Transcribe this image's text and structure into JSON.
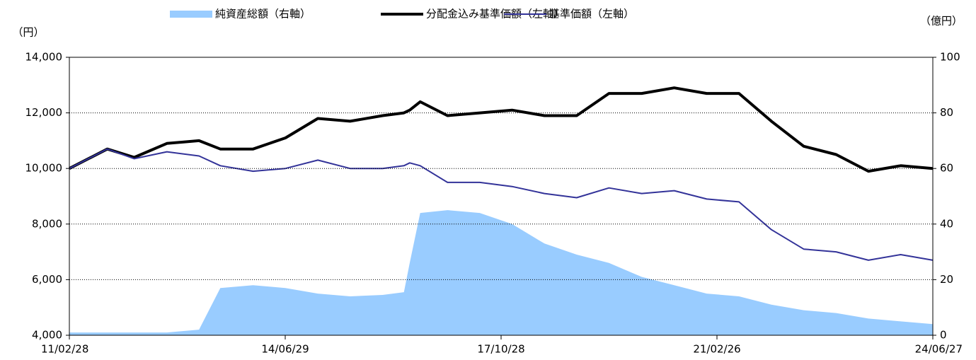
{
  "chart_data": {
    "type": "line",
    "y_label": "（円）",
    "y2_label": "（億円）",
    "x": [
      "11/02/28",
      "11/09/30",
      "12/02/29",
      "12/08/31",
      "13/02/28",
      "13/06/28",
      "13/12/30",
      "14/06/30",
      "14/12/30",
      "15/06/30",
      "15/12/30",
      "16/04/28",
      "16/05/31",
      "16/07/29",
      "16/12/30",
      "17/06/30",
      "17/12/29",
      "18/06/29",
      "18/12/28",
      "19/06/28",
      "19/12/30",
      "20/06/30",
      "20/12/30",
      "21/06/30",
      "21/12/30",
      "22/06/30",
      "22/12/30",
      "23/06/30",
      "23/12/29",
      "24/06/27"
    ],
    "series": [
      {
        "name": "純資産総額（右軸）",
        "color": "#99ccff",
        "axis": "y2",
        "kind": "area",
        "values": [
          1,
          1,
          1,
          1,
          2,
          17,
          18,
          17,
          15,
          14,
          14.5,
          15.5,
          26,
          44,
          45,
          44,
          40,
          33,
          29,
          26,
          21,
          18,
          15,
          14,
          11,
          9,
          8,
          6,
          5,
          4
        ]
      },
      {
        "name": "分配金込み基準価額（左軸）",
        "color": "#000000",
        "kind": "line",
        "width": 4,
        "values": [
          10000,
          10700,
          10400,
          10900,
          11000,
          10700,
          10700,
          11100,
          11800,
          11700,
          11900,
          12000,
          12100,
          12400,
          11900,
          12000,
          12100,
          11900,
          11900,
          12700,
          12700,
          12900,
          12700,
          12700,
          11700,
          10800,
          10500,
          9900,
          10100,
          10000
        ]
      },
      {
        "name": "基準価額（左軸）",
        "color": "#333399",
        "kind": "line",
        "width": 2,
        "values": [
          10000,
          10700,
          10350,
          10600,
          10450,
          10100,
          9900,
          10000,
          10300,
          10000,
          10000,
          10100,
          10200,
          10100,
          9500,
          9500,
          9350,
          9100,
          8950,
          9300,
          9100,
          9200,
          8900,
          8800,
          7800,
          7100,
          7000,
          6700,
          6900,
          6700
        ]
      }
    ],
    "xlim": [
      "11/02/28",
      "24/06/27"
    ],
    "xticks": [
      "11/02/28",
      "14/06/29",
      "17/10/28",
      "21/02/26",
      "24/06/27"
    ],
    "ylim": [
      4000,
      14000
    ],
    "yticks": [
      {
        "value": 4000,
        "label": "4,000"
      },
      {
        "value": 6000,
        "label": "6,000"
      },
      {
        "value": 8000,
        "label": "8,000"
      },
      {
        "value": 10000,
        "label": "10,000"
      },
      {
        "value": 12000,
        "label": "12,000"
      },
      {
        "value": 14000,
        "label": "14,000"
      }
    ],
    "y2lim": [
      0,
      100
    ],
    "y2ticks": [
      0,
      20,
      40,
      60,
      80,
      100
    ],
    "grid": true,
    "legend": "top"
  }
}
